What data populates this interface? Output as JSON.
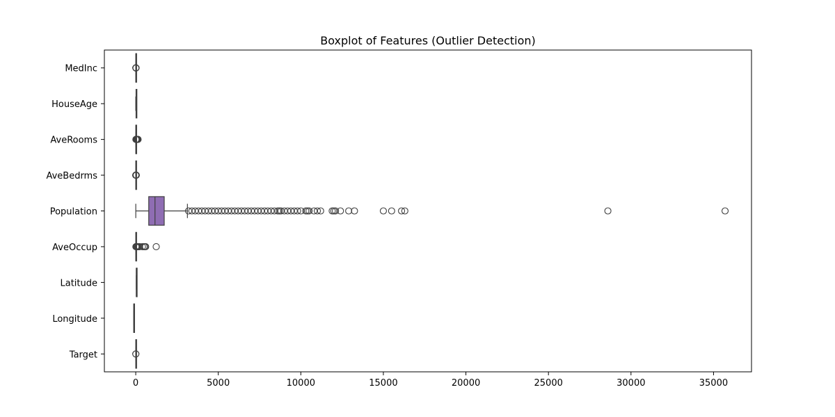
{
  "chart_data": {
    "type": "boxplot",
    "orientation": "horizontal",
    "title": "Boxplot of Features (Outlier Detection)",
    "xlabel": "",
    "ylabel": "",
    "xlim": [
      -1900,
      37300
    ],
    "xticks": [
      0,
      5000,
      10000,
      15000,
      20000,
      25000,
      30000,
      35000
    ],
    "grid": false,
    "categories": [
      "MedInc",
      "HouseAge",
      "AveRooms",
      "AveBedrms",
      "Population",
      "AveOccup",
      "Latitude",
      "Longitude",
      "Target"
    ],
    "boxes": [
      {
        "label": "MedInc",
        "whisker_low": 0.5,
        "q1": 2.6,
        "median": 3.5,
        "q3": 4.7,
        "whisker_high": 8.0,
        "outliers": [
          8.5,
          9.5,
          10.5,
          11.5,
          12.5,
          13.5,
          15.0
        ]
      },
      {
        "label": "HouseAge",
        "whisker_low": 1,
        "q1": 18,
        "median": 29,
        "q3": 37,
        "whisker_high": 52,
        "outliers": []
      },
      {
        "label": "AveRooms",
        "whisker_low": 2.0,
        "q1": 4.4,
        "median": 5.2,
        "q3": 6.1,
        "whisker_high": 8.5,
        "outliers": [
          10,
          20,
          40,
          60,
          80,
          100,
          120,
          141
        ]
      },
      {
        "label": "AveBedrms",
        "whisker_low": 0.9,
        "q1": 1.0,
        "median": 1.05,
        "q3": 1.1,
        "whisker_high": 1.25,
        "outliers": [
          1.5,
          3,
          6,
          10,
          15,
          25,
          34
        ]
      },
      {
        "label": "Population",
        "whisker_low": 3,
        "q1": 787,
        "median": 1166,
        "q3": 1725,
        "whisker_high": 3130,
        "outliers": [
          3200,
          3400,
          3600,
          3800,
          4000,
          4200,
          4400,
          4600,
          4800,
          5000,
          5200,
          5400,
          5600,
          5800,
          6000,
          6200,
          6400,
          6600,
          6800,
          7000,
          7200,
          7400,
          7600,
          7800,
          8000,
          8200,
          8400,
          8600,
          8700,
          8800,
          9000,
          9200,
          9400,
          9600,
          9800,
          10000,
          10300,
          10400,
          10500,
          10800,
          11000,
          11200,
          11900,
          12000,
          12100,
          12400,
          12900,
          13250,
          15000,
          15500,
          16100,
          16300,
          28600,
          35700
        ]
      },
      {
        "label": "AveOccup",
        "whisker_low": 1.2,
        "q1": 2.4,
        "median": 2.8,
        "q3": 3.3,
        "whisker_high": 4.6,
        "outliers": [
          10,
          20,
          40,
          60,
          100,
          140,
          200,
          230,
          400,
          500,
          560,
          600,
          1240
        ]
      },
      {
        "label": "Latitude",
        "whisker_low": 32.5,
        "q1": 33.9,
        "median": 34.3,
        "q3": 37.7,
        "whisker_high": 42,
        "outliers": []
      },
      {
        "label": "Longitude",
        "whisker_low": -124.3,
        "q1": -121.8,
        "median": -118.5,
        "q3": -118.0,
        "whisker_high": -114.3,
        "outliers": []
      },
      {
        "label": "Target",
        "whisker_low": 0.15,
        "q1": 1.2,
        "median": 1.8,
        "q3": 2.6,
        "whisker_high": 4.8,
        "outliers": [
          4.9,
          5.0
        ]
      }
    ],
    "colors": {
      "population_box": "#8f6db3",
      "line": "#3f3f3f",
      "frame": "#000000"
    }
  }
}
